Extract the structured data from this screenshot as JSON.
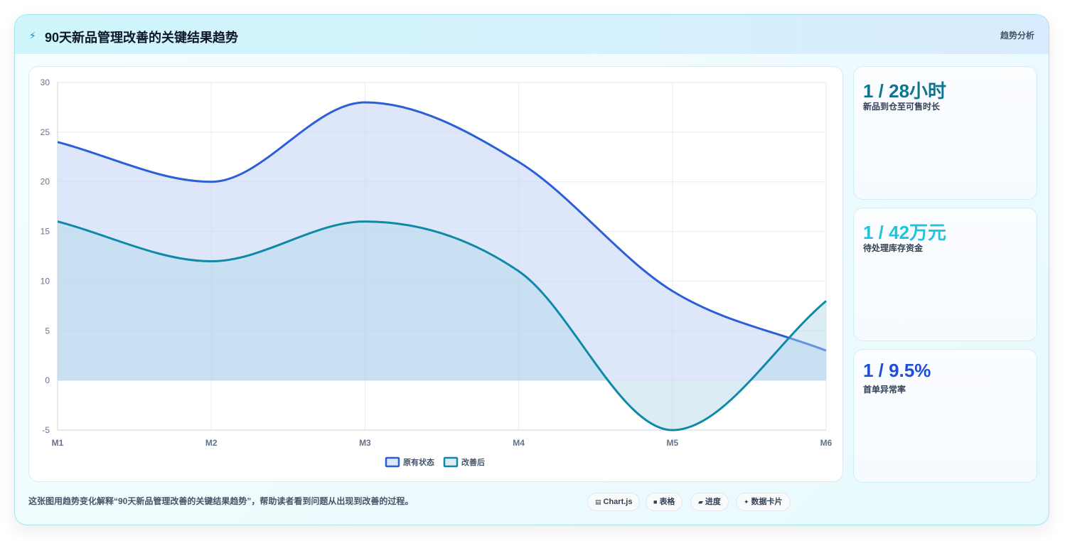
{
  "header": {
    "title": "90天新品管理改善的关键结果趋势",
    "badge": "趋势分析",
    "icon": "lightning-icon"
  },
  "kpis": [
    {
      "value": "1 / 28小时",
      "label": "新品到仓至可售时长",
      "color": "#0e7490"
    },
    {
      "value": "1 / 42万元",
      "label": "待处理库存资金",
      "color": "#22c3dd"
    },
    {
      "value": "1 / 9.5%",
      "label": "首单异常率",
      "color": "#1d4ed8"
    }
  ],
  "caption": "这张图用趋势变化解释“90天新品管理改善的关键结果趋势”，帮助读者看到问题从出现到改善的过程。",
  "chips": [
    {
      "icon": "▤",
      "label": "Chart.js"
    },
    {
      "icon": "■",
      "label": "表格"
    },
    {
      "icon": "▰",
      "label": "进度"
    },
    {
      "icon": "✦",
      "label": "数据卡片"
    }
  ],
  "chart_data": {
    "type": "area",
    "categories": [
      "M1",
      "M2",
      "M3",
      "M4",
      "M5",
      "M6"
    ],
    "ylim": [
      -5,
      30
    ],
    "yticks": [
      -5,
      0,
      5,
      10,
      15,
      20,
      25,
      30
    ],
    "grid": true,
    "legend": "bottom",
    "series": [
      {
        "name": "原有状态",
        "values": [
          24,
          20,
          28,
          22,
          9,
          3
        ],
        "color": "#2b5fd9",
        "fill": "rgba(200,215,247,0.6)"
      },
      {
        "name": "改善后",
        "values": [
          16,
          12,
          16,
          11,
          -5,
          8
        ],
        "color": "#0e8aa8",
        "fill": "rgba(175,212,232,0.45)"
      }
    ]
  }
}
